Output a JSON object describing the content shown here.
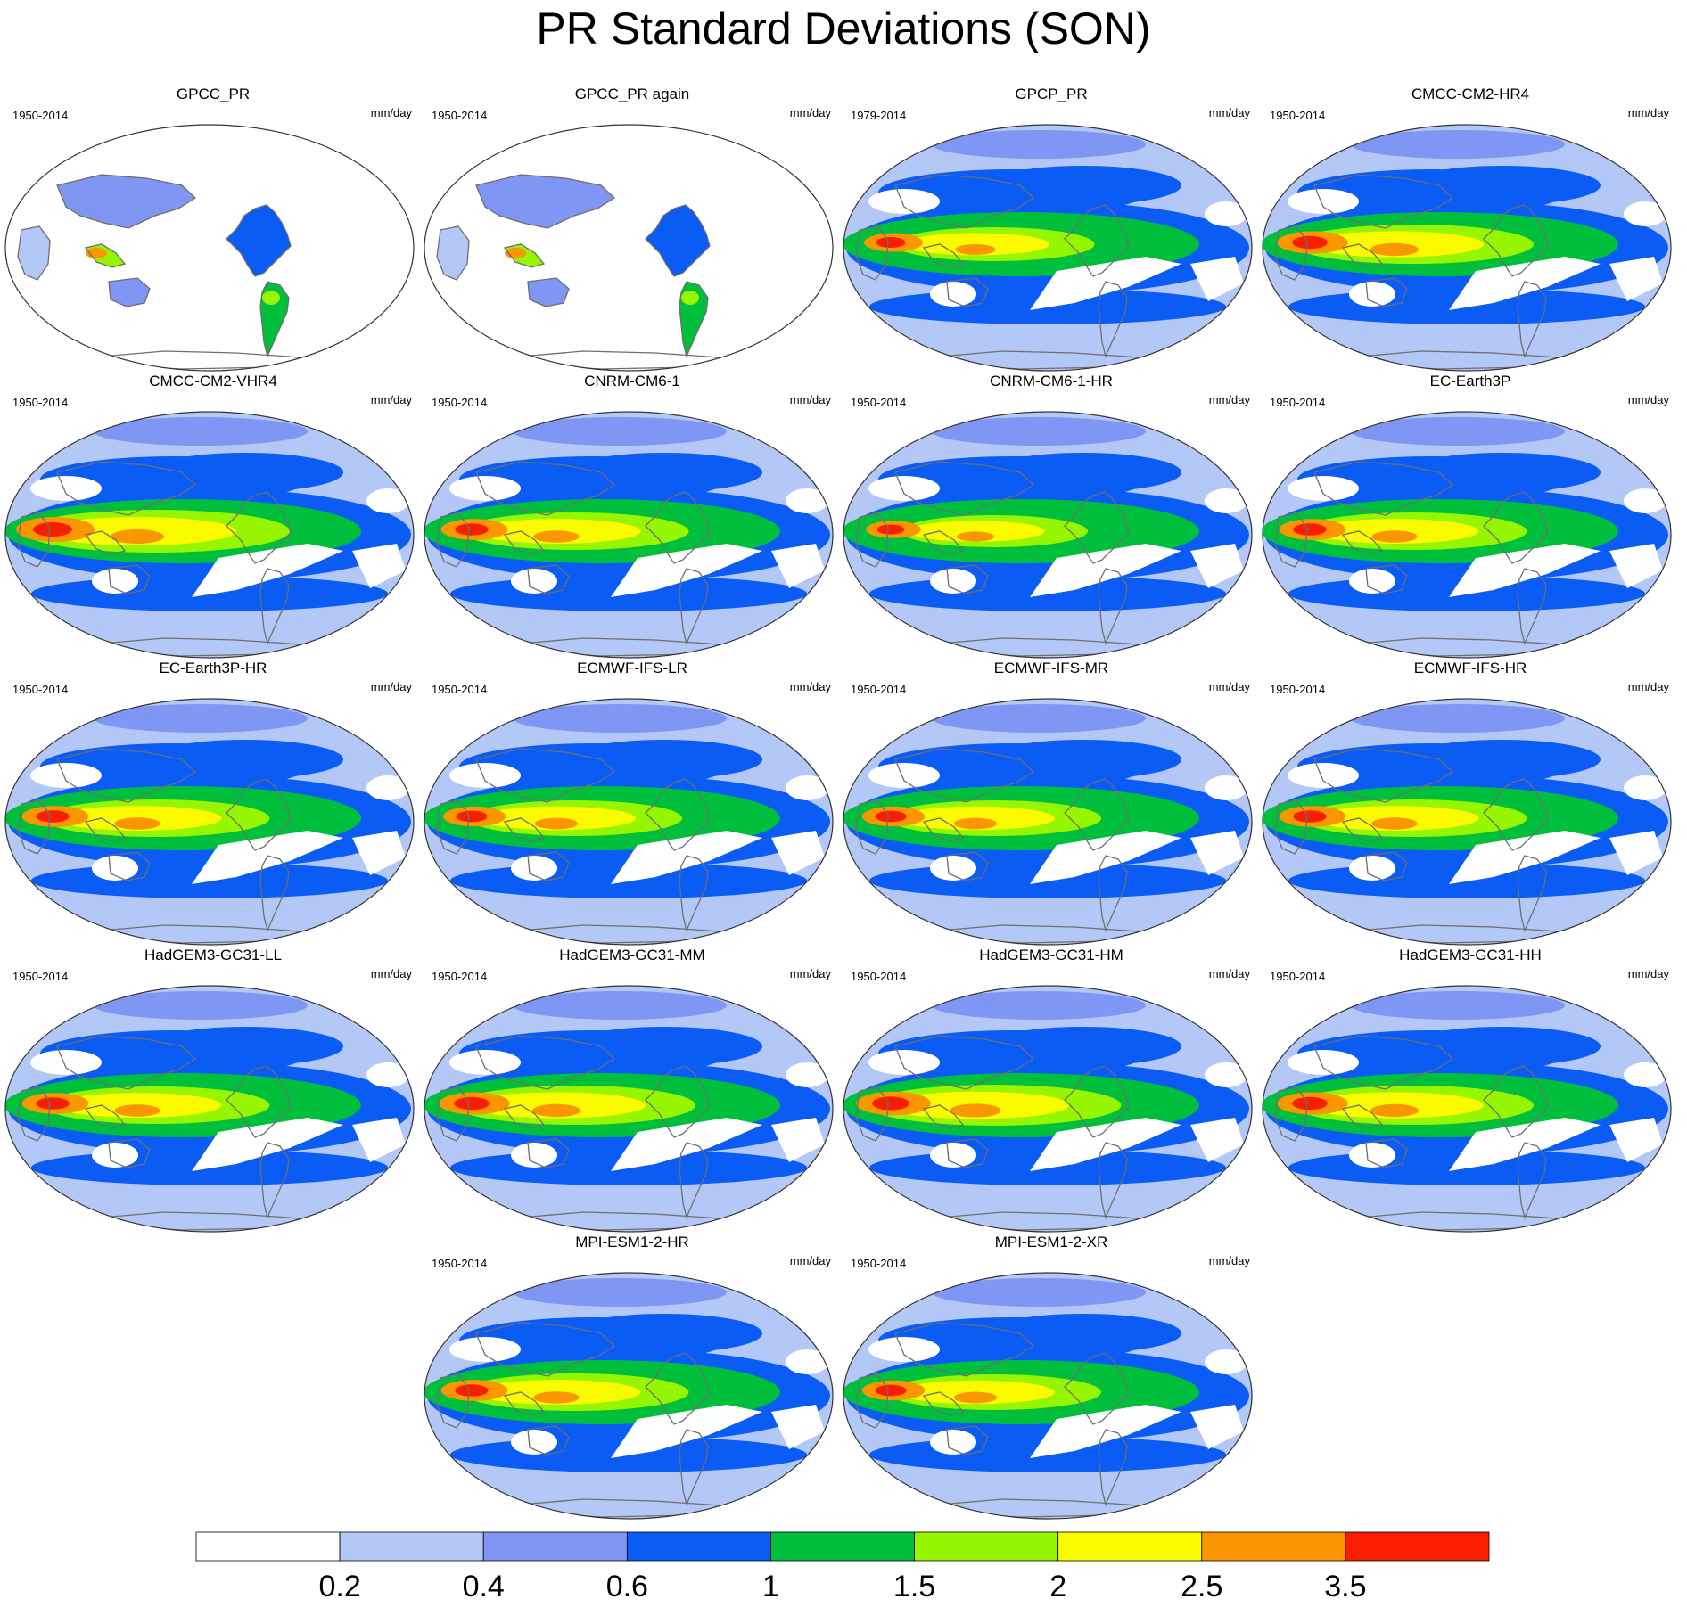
{
  "title": "PR Standard Deviations (SON)",
  "units": "mm/day",
  "colorbar": {
    "colors": [
      "#ffffff",
      "#b4c8f8",
      "#8096f5",
      "#0a5cf5",
      "#00bf3c",
      "#96f500",
      "#fafa00",
      "#fa9600",
      "#fa1e00"
    ],
    "labels": [
      "0.2",
      "0.4",
      "0.6",
      "1",
      "1.5",
      "2",
      "2.5",
      "3.5"
    ]
  },
  "panels": [
    {
      "title": "GPCC_PR",
      "period": "1950-2014",
      "units": "mm/day",
      "kind": "obs-land"
    },
    {
      "title": "GPCC_PR again",
      "period": "1950-2014",
      "units": "mm/day",
      "kind": "obs-land"
    },
    {
      "title": "GPCP_PR",
      "period": "1979-2014",
      "units": "mm/day",
      "kind": "model",
      "intensity": 0.75
    },
    {
      "title": "CMCC-CM2-HR4",
      "period": "1950-2014",
      "units": "mm/day",
      "kind": "model",
      "intensity": 0.9
    },
    {
      "title": "CMCC-CM2-VHR4",
      "period": "1950-2014",
      "units": "mm/day",
      "kind": "model",
      "intensity": 1.0
    },
    {
      "title": "CNRM-CM6-1",
      "period": "1950-2014",
      "units": "mm/day",
      "kind": "model",
      "intensity": 0.85
    },
    {
      "title": "CNRM-CM6-1-HR",
      "period": "1950-2014",
      "units": "mm/day",
      "kind": "model",
      "intensity": 0.7
    },
    {
      "title": "EC-Earth3P",
      "period": "1950-2014",
      "units": "mm/day",
      "kind": "model",
      "intensity": 0.85
    },
    {
      "title": "EC-Earth3P-HR",
      "period": "1950-2014",
      "units": "mm/day",
      "kind": "model",
      "intensity": 0.85
    },
    {
      "title": "ECMWF-IFS-LR",
      "period": "1950-2014",
      "units": "mm/day",
      "kind": "model",
      "intensity": 0.8
    },
    {
      "title": "ECMWF-IFS-MR",
      "period": "1950-2014",
      "units": "mm/day",
      "kind": "model",
      "intensity": 0.8
    },
    {
      "title": "ECMWF-IFS-HR",
      "period": "1950-2014",
      "units": "mm/day",
      "kind": "model",
      "intensity": 0.85
    },
    {
      "title": "HadGEM3-GC31-LL",
      "period": "1950-2014",
      "units": "mm/day",
      "kind": "model",
      "intensity": 0.85
    },
    {
      "title": "HadGEM3-GC31-MM",
      "period": "1950-2014",
      "units": "mm/day",
      "kind": "model",
      "intensity": 0.9
    },
    {
      "title": "HadGEM3-GC31-HM",
      "period": "1950-2014",
      "units": "mm/day",
      "kind": "model",
      "intensity": 0.95
    },
    {
      "title": "HadGEM3-GC31-HH",
      "period": "1950-2014",
      "units": "mm/day",
      "kind": "model",
      "intensity": 0.9
    },
    {
      "title": "MPI-ESM1-2-HR",
      "period": "1950-2014",
      "units": "mm/day",
      "kind": "model",
      "intensity": 0.85
    },
    {
      "title": "MPI-ESM1-2-XR",
      "period": "1950-2014",
      "units": "mm/day",
      "kind": "model",
      "intensity": 0.8
    }
  ]
}
